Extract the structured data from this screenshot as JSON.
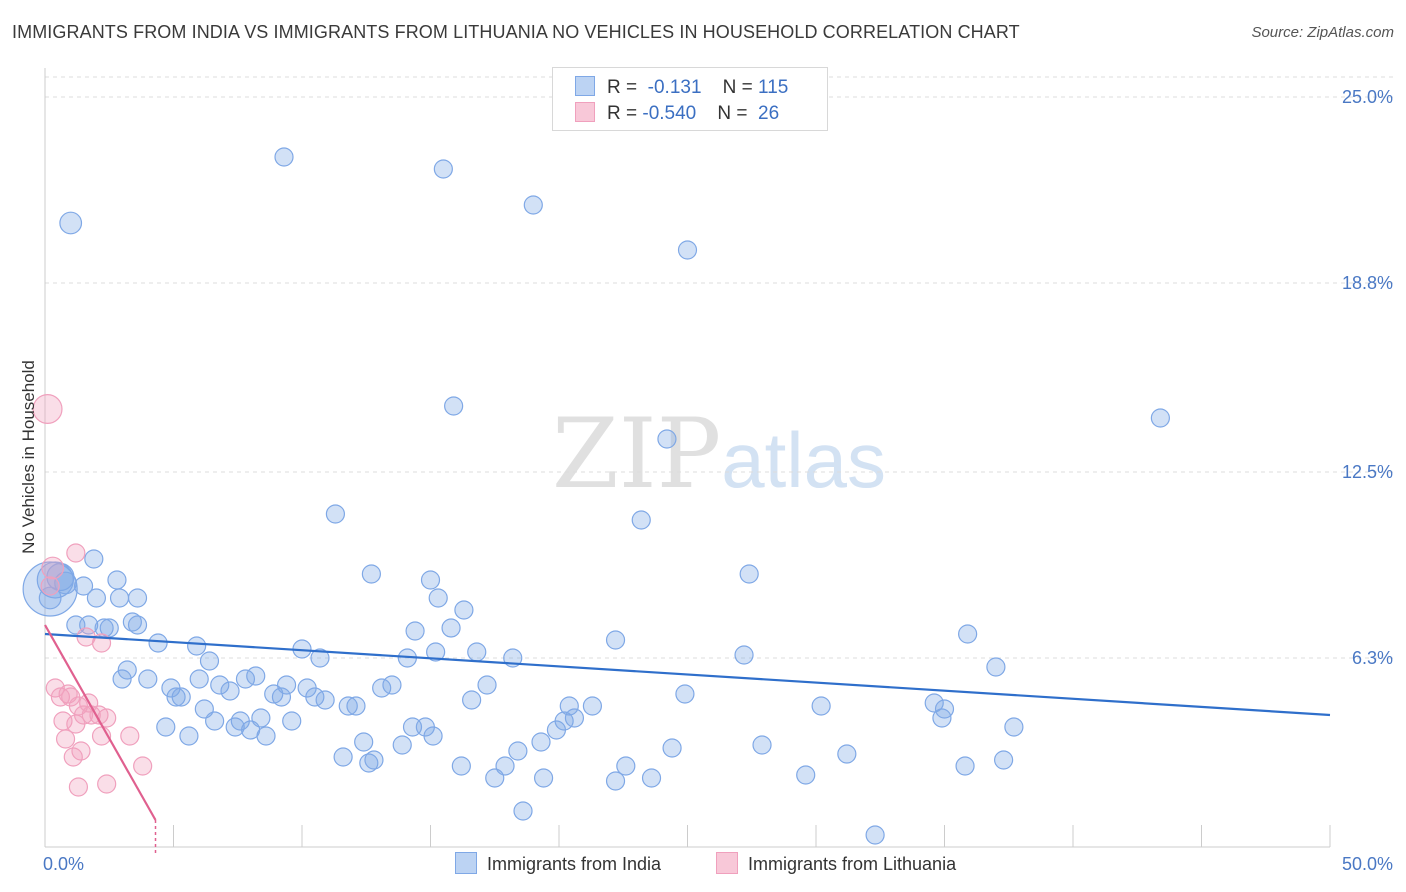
{
  "title": "IMMIGRANTS FROM INDIA VS IMMIGRANTS FROM LITHUANIA NO VEHICLES IN HOUSEHOLD CORRELATION CHART",
  "source": "Source: ZipAtlas.com",
  "watermark": {
    "zip": "ZIP",
    "atlas": "atlas"
  },
  "legend": {
    "india": {
      "r_label": "R = ",
      "r_value": " -0.131",
      "n_label": "N = ",
      "n_value": "115"
    },
    "lithuania": {
      "r_label": "R = ",
      "r_value": "-0.540",
      "n_label": "N = ",
      "n_value": " 26"
    }
  },
  "chart_data": {
    "type": "scatter",
    "title": "IMMIGRANTS FROM INDIA VS IMMIGRANTS FROM LITHUANIA NO VEHICLES IN HOUSEHOLD CORRELATION CHART",
    "xlabel": "",
    "ylabel": "No Vehicles in Household",
    "xlim": [
      0,
      50
    ],
    "ylim": [
      0,
      25
    ],
    "x_tick_labels": [
      "0.0%",
      "50.0%"
    ],
    "y_ticks": [
      6.3,
      12.5,
      18.8,
      25.0
    ],
    "y_tick_labels": [
      "6.3%",
      "12.5%",
      "18.8%",
      "25.0%"
    ],
    "grid": true,
    "legend_position": "top-center",
    "colors": {
      "india": "#7fa8e6",
      "india_line": "#2f6fcb",
      "lithuania": "#f0a0bd",
      "lithuania_line": "#e0608f"
    },
    "series": [
      {
        "name": "Immigrants from India",
        "r": -0.131,
        "n": 115,
        "trend": {
          "x": [
            0,
            50
          ],
          "y": [
            7.1,
            4.4
          ]
        },
        "points": [
          [
            0.2,
            8.6,
            3
          ],
          [
            0.4,
            8.9,
            2
          ],
          [
            0.6,
            9.0,
            1.5
          ],
          [
            0.8,
            8.8,
            1.2
          ],
          [
            0.2,
            8.3,
            1.2
          ],
          [
            1.0,
            20.8,
            1.2
          ],
          [
            1.5,
            8.7,
            1
          ],
          [
            1.9,
            9.6,
            1
          ],
          [
            2.0,
            8.3,
            1
          ],
          [
            2.8,
            8.9,
            1
          ],
          [
            2.9,
            8.3,
            1
          ],
          [
            3.6,
            8.3,
            1
          ],
          [
            1.2,
            7.4,
            1
          ],
          [
            1.7,
            7.4,
            1
          ],
          [
            2.3,
            7.3,
            1
          ],
          [
            2.5,
            7.3,
            1
          ],
          [
            3.4,
            7.5,
            1
          ],
          [
            3.6,
            7.4,
            1
          ],
          [
            4.4,
            6.8,
            1
          ],
          [
            3.2,
            5.9,
            1
          ],
          [
            3.0,
            5.6,
            1
          ],
          [
            4.0,
            5.6,
            1
          ],
          [
            4.9,
            5.3,
            1
          ],
          [
            5.1,
            5.0,
            1
          ],
          [
            5.3,
            5.0,
            1
          ],
          [
            5.9,
            6.7,
            1
          ],
          [
            6.0,
            5.6,
            1
          ],
          [
            6.4,
            6.2,
            1
          ],
          [
            6.8,
            5.4,
            1
          ],
          [
            7.2,
            5.2,
            1
          ],
          [
            7.8,
            5.6,
            1
          ],
          [
            8.2,
            5.7,
            1
          ],
          [
            4.7,
            4.0,
            1
          ],
          [
            5.6,
            3.7,
            1
          ],
          [
            6.2,
            4.6,
            1
          ],
          [
            6.6,
            4.2,
            1
          ],
          [
            7.4,
            4.0,
            1
          ],
          [
            7.6,
            4.2,
            1
          ],
          [
            8.0,
            3.9,
            1
          ],
          [
            8.4,
            4.3,
            1
          ],
          [
            8.6,
            3.7,
            1
          ],
          [
            8.9,
            5.1,
            1
          ],
          [
            9.2,
            5.0,
            1
          ],
          [
            9.4,
            5.4,
            1
          ],
          [
            9.6,
            4.2,
            1
          ],
          [
            10.0,
            6.6,
            1
          ],
          [
            10.2,
            5.3,
            1
          ],
          [
            10.5,
            5.0,
            1
          ],
          [
            10.7,
            6.3,
            1
          ],
          [
            10.9,
            4.9,
            1
          ],
          [
            9.3,
            23.0,
            1
          ],
          [
            11.3,
            11.1,
            1
          ],
          [
            11.6,
            3.0,
            1
          ],
          [
            11.8,
            4.7,
            1
          ],
          [
            12.1,
            4.7,
            1
          ],
          [
            12.4,
            3.5,
            1
          ],
          [
            12.6,
            2.8,
            1
          ],
          [
            12.8,
            2.9,
            1
          ],
          [
            12.7,
            9.1,
            1
          ],
          [
            13.1,
            5.3,
            1
          ],
          [
            13.5,
            5.4,
            1
          ],
          [
            13.9,
            3.4,
            1
          ],
          [
            14.1,
            6.3,
            1
          ],
          [
            14.3,
            4.0,
            1
          ],
          [
            14.4,
            7.2,
            1
          ],
          [
            14.8,
            4.0,
            1
          ],
          [
            15.1,
            3.7,
            1
          ],
          [
            15.2,
            6.5,
            1
          ],
          [
            15.0,
            8.9,
            1
          ],
          [
            15.3,
            8.3,
            1
          ],
          [
            15.8,
            7.3,
            1
          ],
          [
            16.3,
            7.9,
            1
          ],
          [
            15.9,
            14.7,
            1
          ],
          [
            15.5,
            22.6,
            1
          ],
          [
            16.2,
            2.7,
            1
          ],
          [
            16.6,
            4.9,
            1
          ],
          [
            16.8,
            6.5,
            1
          ],
          [
            17.2,
            5.4,
            1
          ],
          [
            17.5,
            2.3,
            1
          ],
          [
            17.9,
            2.7,
            1
          ],
          [
            18.2,
            6.3,
            1
          ],
          [
            18.4,
            3.2,
            1
          ],
          [
            18.6,
            1.2,
            1
          ],
          [
            19.0,
            21.4,
            1
          ],
          [
            19.3,
            3.5,
            1
          ],
          [
            19.4,
            2.3,
            1
          ],
          [
            19.9,
            3.9,
            1
          ],
          [
            20.2,
            4.2,
            1
          ],
          [
            20.4,
            4.7,
            1
          ],
          [
            20.6,
            4.3,
            1
          ],
          [
            21.3,
            4.7,
            1
          ],
          [
            22.2,
            2.2,
            1
          ],
          [
            22.2,
            6.9,
            1
          ],
          [
            22.6,
            2.7,
            1
          ],
          [
            23.2,
            10.9,
            1
          ],
          [
            23.6,
            2.3,
            1
          ],
          [
            24.2,
            13.6,
            1
          ],
          [
            24.4,
            3.3,
            1
          ],
          [
            24.9,
            5.1,
            1
          ],
          [
            25.0,
            19.9,
            1
          ],
          [
            27.2,
            6.4,
            1
          ],
          [
            27.4,
            9.1,
            1
          ],
          [
            27.9,
            3.4,
            1
          ],
          [
            29.6,
            2.4,
            1
          ],
          [
            30.2,
            4.7,
            1
          ],
          [
            31.2,
            3.1,
            1
          ],
          [
            32.3,
            0.4,
            1
          ],
          [
            34.6,
            4.8,
            1
          ],
          [
            34.9,
            4.3,
            1
          ],
          [
            35.0,
            4.6,
            1
          ],
          [
            35.9,
            7.1,
            1
          ],
          [
            35.8,
            2.7,
            1
          ],
          [
            37.0,
            6.0,
            1
          ],
          [
            37.3,
            2.9,
            1
          ],
          [
            37.7,
            4.0,
            1
          ],
          [
            43.4,
            14.3,
            1
          ]
        ]
      },
      {
        "name": "Immigrants from Lithuania",
        "r": -0.54,
        "n": 26,
        "trend": {
          "x": [
            0,
            4.3
          ],
          "y": [
            7.4,
            0.9
          ],
          "dashed_to": [
            4.3,
            -0.2
          ]
        },
        "points": [
          [
            0.1,
            14.6,
            1.6
          ],
          [
            0.3,
            9.3,
            1.2
          ],
          [
            0.2,
            8.7,
            1
          ],
          [
            1.2,
            9.8,
            1
          ],
          [
            1.6,
            7.0,
            1
          ],
          [
            2.2,
            6.8,
            1
          ],
          [
            0.4,
            5.3,
            1
          ],
          [
            0.6,
            5.0,
            1
          ],
          [
            0.9,
            5.1,
            1
          ],
          [
            1.0,
            5.0,
            1
          ],
          [
            1.3,
            4.7,
            1
          ],
          [
            1.7,
            4.8,
            1
          ],
          [
            0.7,
            4.2,
            1
          ],
          [
            1.2,
            4.1,
            1
          ],
          [
            1.5,
            4.4,
            1
          ],
          [
            1.8,
            4.4,
            1
          ],
          [
            2.1,
            4.4,
            1
          ],
          [
            2.4,
            4.3,
            1
          ],
          [
            0.8,
            3.6,
            1
          ],
          [
            1.4,
            3.2,
            1
          ],
          [
            1.1,
            3.0,
            1
          ],
          [
            2.2,
            3.7,
            1
          ],
          [
            3.3,
            3.7,
            1
          ],
          [
            3.8,
            2.7,
            1
          ],
          [
            1.3,
            2.0,
            1
          ],
          [
            2.4,
            2.1,
            1
          ]
        ]
      }
    ]
  },
  "bottom_legend": {
    "india": "Immigrants from India",
    "lithuania": "Immigrants from Lithuania"
  }
}
